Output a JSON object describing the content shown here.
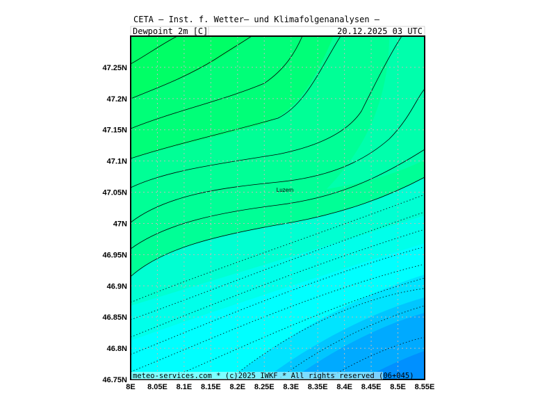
{
  "header": {
    "title": "CETA — Inst. f. Wetter— und Klimafolgenanalysen —",
    "variable": "Dewpoint_2m_[C]",
    "time": "20.12.2025 03 UTC"
  },
  "map": {
    "xlim": [
      8,
      8.55
    ],
    "ylim": [
      46.75,
      47.3
    ],
    "xticks": [
      {
        "value": 8,
        "label": "8E"
      },
      {
        "value": 8.05,
        "label": "8.05E"
      },
      {
        "value": 8.1,
        "label": "8.1E"
      },
      {
        "value": 8.15,
        "label": "8.15E"
      },
      {
        "value": 8.2,
        "label": "8.2E"
      },
      {
        "value": 8.25,
        "label": "8.25E"
      },
      {
        "value": 8.3,
        "label": "8.3E"
      },
      {
        "value": 8.35,
        "label": "8.35E"
      },
      {
        "value": 8.4,
        "label": "8.4E"
      },
      {
        "value": 8.45,
        "label": "8.45E"
      },
      {
        "value": 8.5,
        "label": "8.5E"
      },
      {
        "value": 8.55,
        "label": "8.55E"
      }
    ],
    "yticks": [
      {
        "value": 46.75,
        "label": "46.75N"
      },
      {
        "value": 46.8,
        "label": "46.8N"
      },
      {
        "value": 46.85,
        "label": "46.85N"
      },
      {
        "value": 46.9,
        "label": "46.9N"
      },
      {
        "value": 46.95,
        "label": "46.95N"
      },
      {
        "value": 47,
        "label": "47N"
      },
      {
        "value": 47.05,
        "label": "47.05N"
      },
      {
        "value": 47.1,
        "label": "47.1N"
      },
      {
        "value": 47.15,
        "label": "47.15N"
      },
      {
        "value": 47.2,
        "label": "47.2N"
      },
      {
        "value": 47.25,
        "label": "47.25N"
      }
    ],
    "place": "Luzern"
  },
  "footer": "meteo-services.com * (c)2025 IWKF * All rights reserved (06+045)"
}
